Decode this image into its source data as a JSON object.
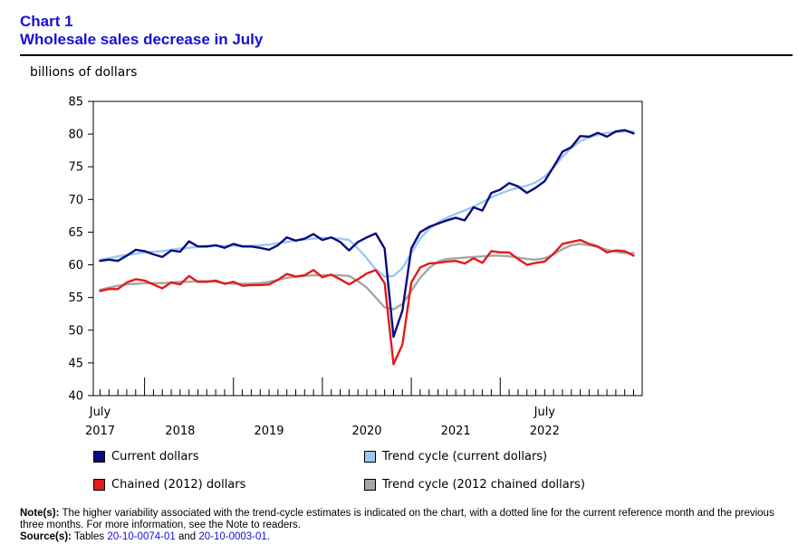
{
  "header": {
    "chart_number": "Chart 1",
    "title": "Wholesale sales decrease in July",
    "unit": "billions of dollars"
  },
  "chart_data": {
    "type": "line",
    "title": "Wholesale sales decrease in July",
    "ylabel": "billions of dollars",
    "ylim": [
      40,
      85
    ],
    "y_ticks": [
      40,
      45,
      50,
      55,
      60,
      65,
      70,
      75,
      80,
      85
    ],
    "x_labels": [
      {
        "index": 0,
        "month": "July",
        "year": "2017"
      },
      {
        "index": 9,
        "month": "",
        "year": "2018"
      },
      {
        "index": 19,
        "month": "",
        "year": "2019"
      },
      {
        "index": 30,
        "month": "",
        "year": "2020"
      },
      {
        "index": 40,
        "month": "",
        "year": "2021"
      },
      {
        "index": 50,
        "month": "July",
        "year": "2022"
      }
    ],
    "year_boundaries": [
      5,
      15,
      25,
      35,
      45
    ],
    "period_count": 61,
    "series": [
      {
        "name": "Current dollars",
        "color": "#0b0b7e",
        "values": [
          60.6,
          60.8,
          60.6,
          61.4,
          62.3,
          62.1,
          61.6,
          61.2,
          62.2,
          62.0,
          63.6,
          62.8,
          62.8,
          63.0,
          62.6,
          63.2,
          62.8,
          62.8,
          62.6,
          62.3,
          63.0,
          64.2,
          63.7,
          64.0,
          64.7,
          63.8,
          64.2,
          63.5,
          62.2,
          63.5,
          64.2,
          64.8,
          62.5,
          49.0,
          53.0,
          62.5,
          65.0,
          65.8,
          66.3,
          66.8,
          67.2,
          66.8,
          68.8,
          68.3,
          71.0,
          71.5,
          72.5,
          72.0,
          71.0,
          71.8,
          72.8,
          75.0,
          77.3,
          78.0,
          79.7,
          79.6,
          80.2,
          79.6,
          80.4,
          80.6,
          80.1
        ]
      },
      {
        "name": "Trend cycle (current dollars)",
        "color": "#99c9f0",
        "values": [
          60.8,
          61.0,
          61.3,
          61.5,
          61.7,
          61.9,
          62.0,
          62.1,
          62.3,
          62.5,
          62.6,
          62.8,
          62.9,
          62.9,
          62.9,
          62.9,
          62.9,
          62.9,
          63.0,
          63.1,
          63.3,
          63.5,
          63.7,
          63.9,
          64.0,
          64.1,
          64.1,
          64.0,
          63.8,
          62.5,
          61.0,
          59.3,
          58.2,
          58.3,
          59.5,
          61.8,
          64.0,
          65.5,
          66.5,
          67.2,
          67.8,
          68.3,
          68.9,
          69.6,
          70.3,
          70.9,
          71.4,
          71.8,
          72.1,
          72.6,
          73.5,
          74.9,
          76.5,
          77.9,
          78.9,
          79.5,
          79.9,
          80.2,
          80.3,
          80.4,
          80.4
        ]
      },
      {
        "name": "Chained (2012) dollars",
        "color": "#e31a1c",
        "values": [
          56.0,
          56.3,
          56.3,
          57.3,
          57.8,
          57.6,
          57.0,
          56.4,
          57.3,
          57.0,
          58.3,
          57.4,
          57.4,
          57.6,
          57.1,
          57.4,
          56.8,
          56.9,
          56.9,
          57.0,
          57.7,
          58.6,
          58.2,
          58.4,
          59.2,
          58.1,
          58.5,
          57.8,
          57.0,
          57.8,
          58.7,
          59.2,
          57.2,
          44.8,
          47.8,
          57.3,
          59.6,
          60.2,
          60.3,
          60.5,
          60.6,
          60.2,
          61.0,
          60.3,
          62.1,
          61.9,
          61.9,
          60.9,
          60.0,
          60.3,
          60.5,
          61.7,
          63.2,
          63.5,
          63.8,
          63.2,
          62.8,
          61.9,
          62.2,
          62.1,
          61.4
        ]
      },
      {
        "name": "Trend cycle (2012 chained dollars)",
        "color": "#a6a6a6",
        "values": [
          56.2,
          56.5,
          56.8,
          57.0,
          57.1,
          57.2,
          57.2,
          57.2,
          57.3,
          57.4,
          57.4,
          57.5,
          57.5,
          57.4,
          57.2,
          57.1,
          57.1,
          57.1,
          57.2,
          57.4,
          57.7,
          58.0,
          58.2,
          58.3,
          58.4,
          58.4,
          58.4,
          58.4,
          58.3,
          57.5,
          56.5,
          55.0,
          53.5,
          53.2,
          54.0,
          56.0,
          58.0,
          59.5,
          60.5,
          60.9,
          61.0,
          61.1,
          61.2,
          61.3,
          61.4,
          61.4,
          61.3,
          61.1,
          60.9,
          60.8,
          61.0,
          61.6,
          62.4,
          63.0,
          63.2,
          63.0,
          62.7,
          62.3,
          62.0,
          61.8,
          61.8
        ]
      }
    ]
  },
  "legend": {
    "current": "Current dollars",
    "trend_current": "Trend cycle (current dollars)",
    "chained": "Chained (2012) dollars",
    "trend_chained": "Trend cycle (2012 chained dollars)"
  },
  "notes": {
    "note_label": "Note(s):",
    "note_text": " The higher variability associated with the trend-cycle estimates is indicated on the chart, with a dotted line for the current reference month and the previous three months. For more information, see the Note to readers.",
    "source_label": "Source(s):",
    "source_prefix": " Tables ",
    "table1": "20-10-0074-01",
    "source_and": " and ",
    "table2": "20-10-0003-01",
    "source_end": "."
  },
  "colors": {
    "heading": "#1a0fd8",
    "current": "#0b0b7e",
    "trend_current": "#99c9f0",
    "chained": "#e31a1c",
    "trend_chained": "#a6a6a6"
  }
}
